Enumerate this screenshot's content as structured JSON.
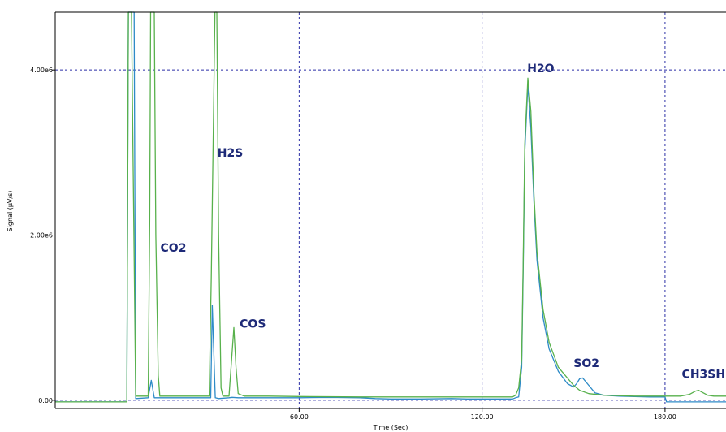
{
  "chart_data": {
    "type": "line",
    "xlabel": "Time (Sec)",
    "ylabel": "Signal (µV/s)",
    "xlim": [
      -20,
      200
    ],
    "ylim": [
      -100000,
      4700000
    ],
    "x_ticks": [
      {
        "value": 60,
        "label": "60.00"
      },
      {
        "value": 120,
        "label": "120.00"
      },
      {
        "value": 180,
        "label": "180.00"
      }
    ],
    "y_ticks": [
      {
        "value": 0,
        "label": "0.00"
      },
      {
        "value": 2000000,
        "label": "2.00e6"
      },
      {
        "value": 4000000,
        "label": "4.00e6"
      }
    ],
    "grid": true,
    "series": [
      {
        "color": "#2e8bc7",
        "x": [
          -20,
          3.5,
          4.0,
          4.5,
          5.4,
          5.9,
          6.4,
          10.5,
          11.5,
          12.5,
          13.5,
          20,
          31,
          31.5,
          32.5,
          33.5,
          37,
          38,
          40,
          60,
          70,
          80,
          85,
          90,
          100,
          110,
          115,
          120,
          125,
          130,
          131,
          132,
          133,
          133.5,
          134,
          135,
          136,
          137,
          138,
          140,
          142,
          145,
          148,
          150,
          151,
          152,
          153,
          155,
          157,
          160,
          165,
          170,
          175,
          179,
          180,
          180.5,
          190,
          200
        ],
        "y": [
          -20000,
          -20000,
          5000000,
          5000000,
          5000000,
          5000000,
          20000,
          30000,
          240000,
          30000,
          30000,
          30000,
          30000,
          1150000,
          30000,
          20000,
          30000,
          35000,
          30000,
          30000,
          35000,
          30000,
          20000,
          15000,
          15000,
          20000,
          15000,
          15000,
          15000,
          15000,
          30000,
          40000,
          400000,
          1600000,
          3000000,
          3820000,
          3300000,
          2400000,
          1700000,
          1000000,
          620000,
          350000,
          200000,
          160000,
          200000,
          260000,
          270000,
          180000,
          90000,
          60000,
          50000,
          45000,
          40000,
          40000,
          40000,
          -20000,
          -20000,
          -20000
        ]
      },
      {
        "color": "#58b14c",
        "x": [
          -20,
          3.5,
          4.0,
          4.5,
          5.0,
          6.4,
          10.5,
          11,
          11.3,
          12.5,
          13.0,
          13.8,
          14.3,
          20,
          30.5,
          31.2,
          32.4,
          33.0,
          33.6,
          34.4,
          35,
          37,
          38.6,
          39.3,
          40,
          42,
          50,
          60,
          80,
          100,
          120,
          130,
          131,
          132,
          133,
          133.5,
          134,
          135,
          136,
          137,
          138,
          140,
          142,
          145,
          150,
          152,
          155,
          160,
          170,
          180,
          185,
          188,
          190,
          191,
          192,
          194,
          196,
          200
        ],
        "y": [
          -20000,
          -20000,
          5000000,
          5000000,
          5000000,
          50000,
          50000,
          2200000,
          5000000,
          5000000,
          2000000,
          300000,
          50000,
          50000,
          50000,
          1500000,
          5000000,
          5000000,
          2000000,
          150000,
          50000,
          50000,
          880000,
          400000,
          80000,
          50000,
          50000,
          45000,
          40000,
          40000,
          40000,
          40000,
          60000,
          150000,
          500000,
          1700000,
          3100000,
          3900000,
          3500000,
          2500000,
          1800000,
          1100000,
          700000,
          400000,
          180000,
          120000,
          80000,
          60000,
          50000,
          50000,
          50000,
          70000,
          110000,
          120000,
          100000,
          60000,
          50000,
          50000
        ]
      }
    ],
    "annotations": [
      {
        "text": "CO2",
        "x": 14.5,
        "y": 1800000
      },
      {
        "text": "H2S",
        "x": 33.2,
        "y": 2950000
      },
      {
        "text": "COS",
        "x": 40.5,
        "y": 880000
      },
      {
        "text": "H2O",
        "x": 134.8,
        "y": 3970000
      },
      {
        "text": "SO2",
        "x": 150.0,
        "y": 400000
      },
      {
        "text": "CH3SH",
        "x": 185.5,
        "y": 270000
      }
    ]
  }
}
